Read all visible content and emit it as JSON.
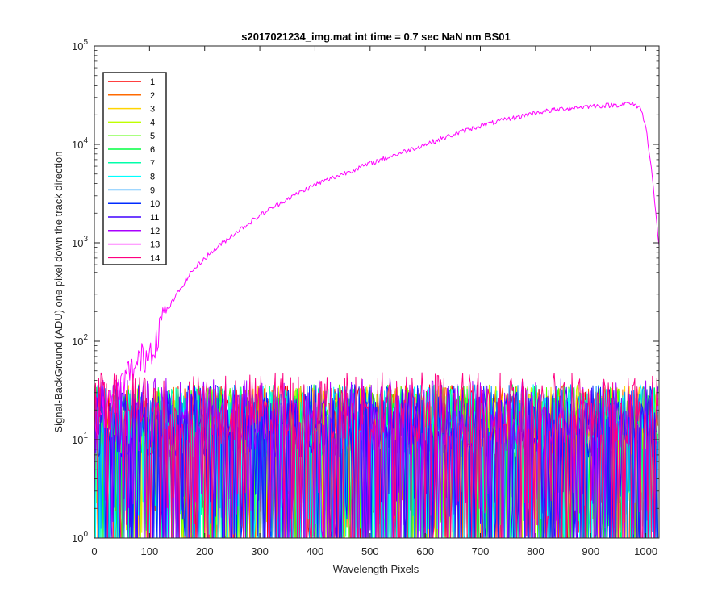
{
  "chart_data": {
    "type": "line",
    "title": "s2017021234_img.mat int time = 0.7 sec  NaN nm BS01",
    "xlabel": "Wavelength Pixels",
    "ylabel": "Signal-BackGround (ADU) one pixel down the track direction",
    "xlim": [
      0,
      1024
    ],
    "ylim": [
      1,
      100000
    ],
    "yscale": "log",
    "x_ticks": [
      0,
      100,
      200,
      300,
      400,
      500,
      600,
      700,
      800,
      900,
      1000
    ],
    "x_tick_labels": [
      "0",
      "100",
      "200",
      "300",
      "400",
      "500",
      "600",
      "700",
      "800",
      "900",
      "1000"
    ],
    "y_ticks": [
      {
        "value": 1,
        "base": "10",
        "exp": "0"
      },
      {
        "value": 10,
        "base": "10",
        "exp": "1"
      },
      {
        "value": 100,
        "base": "10",
        "exp": "2"
      },
      {
        "value": 1000,
        "base": "10",
        "exp": "3"
      },
      {
        "value": 10000,
        "base": "10",
        "exp": "4"
      },
      {
        "value": 100000,
        "base": "10",
        "exp": "5"
      }
    ],
    "legend_position": "top-left",
    "grid": false,
    "series": [
      {
        "name": "1",
        "color": "#ff0000",
        "kind": "noise",
        "level": 12
      },
      {
        "name": "2",
        "color": "#ff6a00",
        "kind": "noise",
        "level": 12
      },
      {
        "name": "3",
        "color": "#ffd400",
        "kind": "noise",
        "level": 12
      },
      {
        "name": "4",
        "color": "#bfff00",
        "kind": "noise",
        "level": 12
      },
      {
        "name": "5",
        "color": "#55ff00",
        "kind": "noise",
        "level": 12
      },
      {
        "name": "6",
        "color": "#00ff40",
        "kind": "noise",
        "level": 12
      },
      {
        "name": "7",
        "color": "#00ffaa",
        "kind": "noise",
        "level": 12
      },
      {
        "name": "8",
        "color": "#00ffff",
        "kind": "noise",
        "level": 12
      },
      {
        "name": "9",
        "color": "#0095ff",
        "kind": "noise",
        "level": 12
      },
      {
        "name": "10",
        "color": "#002bff",
        "kind": "noise",
        "level": 12
      },
      {
        "name": "11",
        "color": "#4000ff",
        "kind": "noise",
        "level": 12
      },
      {
        "name": "12",
        "color": "#aa00ff",
        "kind": "noise",
        "level": 14
      },
      {
        "name": "13",
        "color": "#ff00ff",
        "kind": "signal",
        "points": [
          [
            0,
            15
          ],
          [
            20,
            20
          ],
          [
            40,
            30
          ],
          [
            60,
            45
          ],
          [
            80,
            60
          ],
          [
            100,
            80
          ],
          [
            110,
            100
          ],
          [
            125,
            180
          ],
          [
            150,
            300
          ],
          [
            175,
            500
          ],
          [
            200,
            700
          ],
          [
            250,
            1200
          ],
          [
            300,
            1900
          ],
          [
            350,
            2800
          ],
          [
            400,
            3900
          ],
          [
            450,
            5000
          ],
          [
            500,
            6400
          ],
          [
            550,
            8000
          ],
          [
            600,
            10000
          ],
          [
            650,
            12500
          ],
          [
            700,
            15500
          ],
          [
            750,
            18000
          ],
          [
            800,
            21000
          ],
          [
            850,
            23000
          ],
          [
            900,
            24500
          ],
          [
            940,
            25000
          ],
          [
            970,
            26000
          ],
          [
            990,
            24000
          ],
          [
            1000,
            15000
          ],
          [
            1010,
            6000
          ],
          [
            1020,
            1500
          ],
          [
            1024,
            900
          ]
        ]
      },
      {
        "name": "14",
        "color": "#ff0080",
        "kind": "noise",
        "level": 16
      }
    ]
  }
}
